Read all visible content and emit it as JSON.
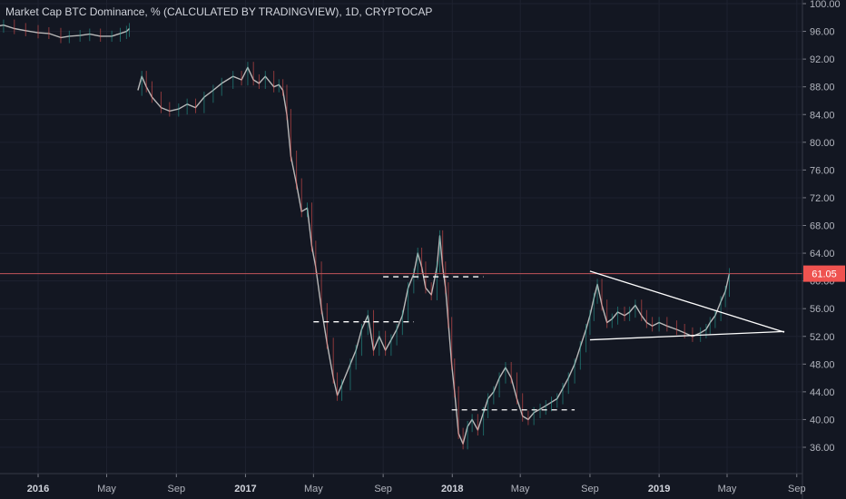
{
  "chart_data": {
    "type": "candlestick",
    "title": "Market Cap BTC Dominance, % (CALCULATED BY TRADINGVIEW), 1D, CRYPTOCAP",
    "ylim": [
      35.0,
      100.0
    ],
    "y_ticks": [
      "100.00",
      "96.00",
      "92.00",
      "88.00",
      "84.00",
      "80.00",
      "76.00",
      "72.00",
      "68.00",
      "64.00",
      "60.00",
      "56.00",
      "52.00",
      "48.00",
      "44.00",
      "40.00",
      "36.00"
    ],
    "x_ticks": [
      {
        "label": "2016",
        "date": "2016-01-01",
        "year": true
      },
      {
        "label": "May",
        "date": "2016-05-01",
        "year": false
      },
      {
        "label": "Sep",
        "date": "2016-09-01",
        "year": false
      },
      {
        "label": "2017",
        "date": "2017-01-01",
        "year": true
      },
      {
        "label": "May",
        "date": "2017-05-01",
        "year": false
      },
      {
        "label": "Sep",
        "date": "2017-09-01",
        "year": false
      },
      {
        "label": "2018",
        "date": "2018-01-01",
        "year": true
      },
      {
        "label": "May",
        "date": "2018-05-01",
        "year": false
      },
      {
        "label": "Sep",
        "date": "2018-09-01",
        "year": false
      },
      {
        "label": "2019",
        "date": "2019-01-01",
        "year": true
      },
      {
        "label": "May",
        "date": "2019-05-01",
        "year": false
      },
      {
        "label": "Sep",
        "date": "2019-09-01",
        "year": false
      }
    ],
    "series": [
      {
        "segments": [
          [
            [
              "2015-09-01",
              96.8
            ],
            [
              "2015-09-20",
              96.2
            ],
            [
              "2015-10-10",
              96.6
            ],
            [
              "2015-11-01",
              96.9
            ],
            [
              "2015-11-20",
              96.4
            ],
            [
              "2015-12-10",
              96.1
            ],
            [
              "2016-01-01",
              95.8
            ],
            [
              "2016-01-20",
              95.7
            ],
            [
              "2016-02-10",
              95.1
            ],
            [
              "2016-02-25",
              95.3
            ],
            [
              "2016-03-15",
              95.4
            ],
            [
              "2016-04-01",
              95.6
            ],
            [
              "2016-04-20",
              95.3
            ],
            [
              "2016-05-10",
              95.3
            ],
            [
              "2016-05-25",
              95.7
            ],
            [
              "2016-06-05",
              96.0
            ],
            [
              "2016-06-10",
              96.4
            ]
          ],
          [
            [
              "2016-06-25",
              87.5
            ],
            [
              "2016-07-02",
              89.5
            ],
            [
              "2016-07-10",
              88.0
            ],
            [
              "2016-07-20",
              86.5
            ],
            [
              "2016-08-05",
              85.0
            ],
            [
              "2016-08-20",
              84.5
            ],
            [
              "2016-09-05",
              84.8
            ],
            [
              "2016-09-20",
              85.5
            ],
            [
              "2016-10-05",
              85.0
            ],
            [
              "2016-10-20",
              86.5
            ],
            [
              "2016-11-05",
              87.5
            ],
            [
              "2016-11-20",
              88.5
            ],
            [
              "2016-12-10",
              89.5
            ],
            [
              "2016-12-25",
              89.0
            ],
            [
              "2017-01-05",
              90.8
            ],
            [
              "2017-01-15",
              89.0
            ],
            [
              "2017-01-25",
              88.5
            ],
            [
              "2017-02-05",
              89.5
            ],
            [
              "2017-02-20",
              88.0
            ],
            [
              "2017-03-01",
              88.3
            ],
            [
              "2017-03-08",
              87.5
            ],
            [
              "2017-03-15",
              84.0
            ],
            [
              "2017-03-22",
              78.0
            ],
            [
              "2017-04-01",
              74.0
            ],
            [
              "2017-04-10",
              70.0
            ],
            [
              "2017-04-20",
              70.5
            ],
            [
              "2017-04-28",
              65.0
            ],
            [
              "2017-05-05",
              62.0
            ],
            [
              "2017-05-15",
              56.0
            ],
            [
              "2017-05-25",
              51.0
            ],
            [
              "2017-06-05",
              46.0
            ],
            [
              "2017-06-12",
              43.5
            ],
            [
              "2017-06-20",
              45.0
            ],
            [
              "2017-07-05",
              48.0
            ],
            [
              "2017-07-15",
              50.0
            ],
            [
              "2017-07-25",
              53.0
            ],
            [
              "2017-08-05",
              55.0
            ],
            [
              "2017-08-15",
              50.0
            ],
            [
              "2017-08-25",
              52.0
            ],
            [
              "2017-09-05",
              50.0
            ],
            [
              "2017-09-15",
              51.5
            ],
            [
              "2017-09-25",
              53.0
            ],
            [
              "2017-10-05",
              55.0
            ],
            [
              "2017-10-15",
              59.0
            ],
            [
              "2017-10-25",
              61.0
            ],
            [
              "2017-11-01",
              64.0
            ],
            [
              "2017-11-08",
              62.0
            ],
            [
              "2017-11-15",
              59.0
            ],
            [
              "2017-11-25",
              58.0
            ],
            [
              "2017-12-05",
              62.0
            ],
            [
              "2017-12-10",
              66.5
            ],
            [
              "2017-12-15",
              62.0
            ],
            [
              "2017-12-20",
              59.0
            ],
            [
              "2017-12-25",
              54.0
            ],
            [
              "2017-12-31",
              48.0
            ],
            [
              "2018-01-05",
              44.0
            ],
            [
              "2018-01-12",
              38.0
            ],
            [
              "2018-01-20",
              36.5
            ],
            [
              "2018-01-28",
              39.0
            ],
            [
              "2018-02-05",
              40.0
            ],
            [
              "2018-02-15",
              38.5
            ],
            [
              "2018-02-25",
              41.0
            ],
            [
              "2018-03-05",
              43.0
            ],
            [
              "2018-03-15",
              44.0
            ],
            [
              "2018-03-25",
              46.0
            ],
            [
              "2018-04-05",
              47.5
            ],
            [
              "2018-04-15",
              46.0
            ],
            [
              "2018-04-25",
              43.0
            ],
            [
              "2018-05-05",
              40.5
            ],
            [
              "2018-05-15",
              40.0
            ],
            [
              "2018-05-25",
              41.0
            ],
            [
              "2018-06-05",
              41.5
            ],
            [
              "2018-06-15",
              42.0
            ],
            [
              "2018-06-25",
              42.5
            ],
            [
              "2018-07-05",
              43.0
            ],
            [
              "2018-07-15",
              44.5
            ],
            [
              "2018-07-25",
              46.0
            ],
            [
              "2018-08-05",
              48.0
            ],
            [
              "2018-08-15",
              50.5
            ],
            [
              "2018-08-25",
              53.0
            ],
            [
              "2018-09-01",
              55.0
            ],
            [
              "2018-09-08",
              57.5
            ],
            [
              "2018-09-14",
              59.5
            ],
            [
              "2018-09-22",
              56.5
            ],
            [
              "2018-10-01",
              54.0
            ],
            [
              "2018-10-10",
              54.5
            ],
            [
              "2018-10-20",
              55.5
            ],
            [
              "2018-11-01",
              55.0
            ],
            [
              "2018-11-10",
              55.5
            ],
            [
              "2018-11-20",
              56.5
            ],
            [
              "2018-12-01",
              55.0
            ],
            [
              "2018-12-10",
              54.0
            ],
            [
              "2018-12-20",
              53.5
            ],
            [
              "2019-01-01",
              54.0
            ],
            [
              "2019-01-15",
              53.5
            ],
            [
              "2019-02-01",
              53.0
            ],
            [
              "2019-02-15",
              52.5
            ],
            [
              "2019-03-01",
              52.0
            ],
            [
              "2019-03-15",
              52.5
            ],
            [
              "2019-03-25",
              53.0
            ],
            [
              "2019-04-01",
              54.0
            ],
            [
              "2019-04-10",
              55.0
            ],
            [
              "2019-04-20",
              57.0
            ],
            [
              "2019-04-28",
              58.5
            ],
            [
              "2019-05-05",
              61.05
            ]
          ]
        ]
      }
    ],
    "last_value_label": "61.05",
    "annotations": [
      {
        "kind": "hline",
        "y": 61.05,
        "color": "#c2555a"
      },
      {
        "kind": "dashed",
        "from": [
          "2017-05-01",
          54.1
        ],
        "to": [
          "2017-10-25",
          54.1
        ]
      },
      {
        "kind": "dashed",
        "from": [
          "2017-09-01",
          60.6
        ],
        "to": [
          "2018-02-25",
          60.6
        ]
      },
      {
        "kind": "dashed",
        "from": [
          "2017-12-31",
          41.4
        ],
        "to": [
          "2018-08-05",
          41.4
        ]
      },
      {
        "kind": "trendline",
        "from": [
          "2018-09-01",
          61.4
        ],
        "to": [
          "2019-08-10",
          52.6
        ]
      },
      {
        "kind": "trendline",
        "from": [
          "2018-09-01",
          51.5
        ],
        "to": [
          "2019-08-10",
          52.7
        ]
      }
    ],
    "colors": {
      "up": "#26a69a",
      "down": "#ef5350",
      "line": "#b8b8b8",
      "hline": "#c2555a",
      "annotation": "#ffffff",
      "price_tag": "#ef5350"
    }
  }
}
